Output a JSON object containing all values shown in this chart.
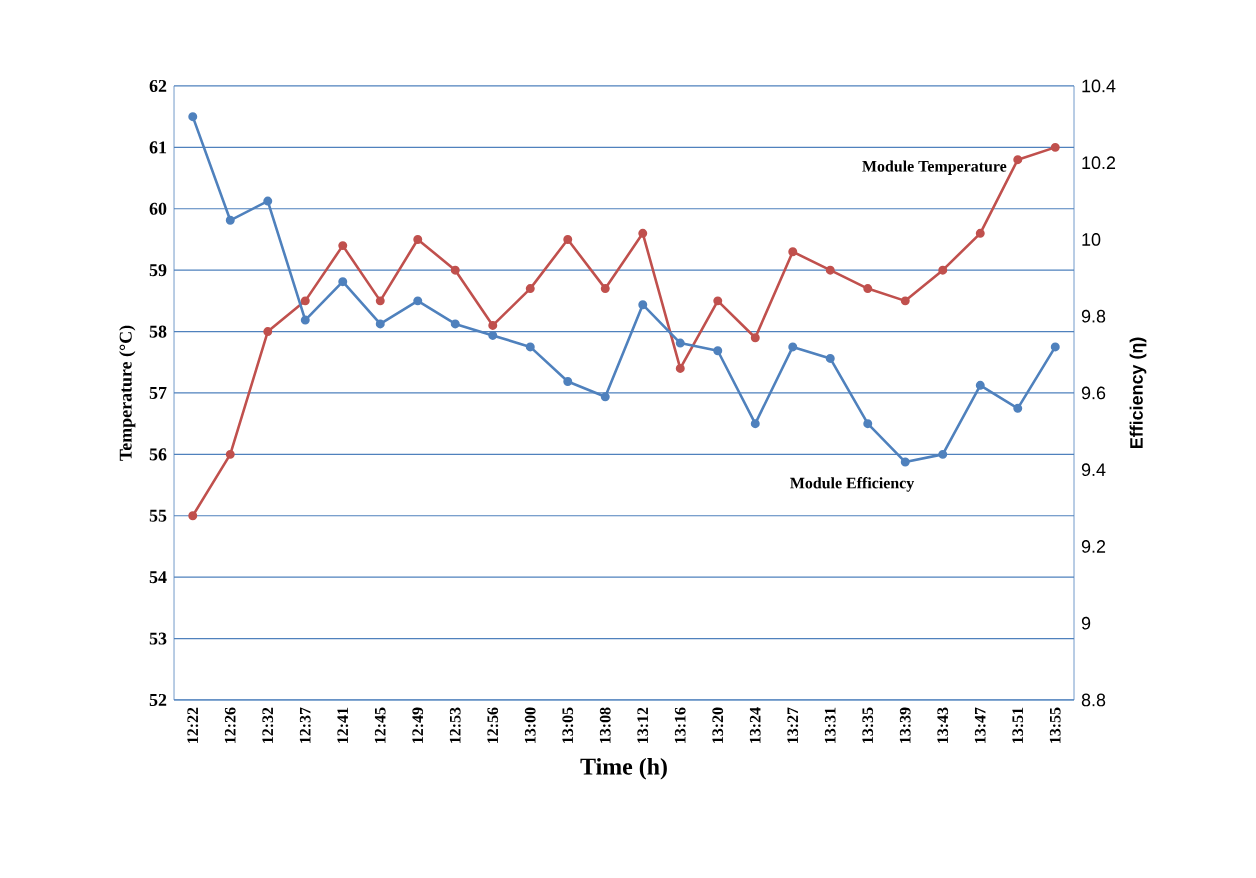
{
  "chart_data": {
    "type": "line",
    "xlabel": "Time (h)",
    "ylabel": "Temperature (°C)",
    "y2label": "Efficiency (η)",
    "categories": [
      "12:22",
      "12:26",
      "12:32",
      "12:37",
      "12:41",
      "12:45",
      "12:49",
      "12:53",
      "12:56",
      "13:00",
      "13:05",
      "13:08",
      "13:12",
      "13:16",
      "13:20",
      "13:24",
      "13:27",
      "13:31",
      "13:35",
      "13:39",
      "13:43",
      "13:47",
      "13:51",
      "13:55"
    ],
    "series": [
      {
        "name": "Module Temperature",
        "color": "#c0504d",
        "values": [
          55.0,
          56.0,
          58.0,
          58.5,
          59.4,
          58.5,
          59.5,
          59.0,
          58.1,
          58.7,
          59.5,
          58.7,
          59.6,
          57.4,
          58.5,
          57.9,
          59.3,
          59.0,
          58.7,
          58.5,
          59.0,
          59.6,
          60.8,
          61.0
        ]
      },
      {
        "name": "Module Efficiency",
        "color": "#4f81bd",
        "axis": "y2",
        "values": [
          10.32,
          10.05,
          10.1,
          9.79,
          9.89,
          9.78,
          9.84,
          9.78,
          9.75,
          9.72,
          9.63,
          9.59,
          9.83,
          9.73,
          9.71,
          9.52,
          9.72,
          9.69,
          9.52,
          9.42,
          9.44,
          9.62,
          9.56,
          9.72
        ]
      }
    ],
    "ylim": [
      52,
      62
    ],
    "yticks": [
      52,
      53,
      54,
      55,
      56,
      57,
      58,
      59,
      60,
      61,
      62
    ],
    "y2lim": [
      8.8,
      10.4
    ],
    "y2ticks": [
      8.8,
      9,
      9.2,
      9.4,
      9.6,
      9.8,
      10,
      10.2,
      10.4
    ],
    "grid": "y",
    "legend": false,
    "marker": "circle",
    "line_style": "solid"
  }
}
